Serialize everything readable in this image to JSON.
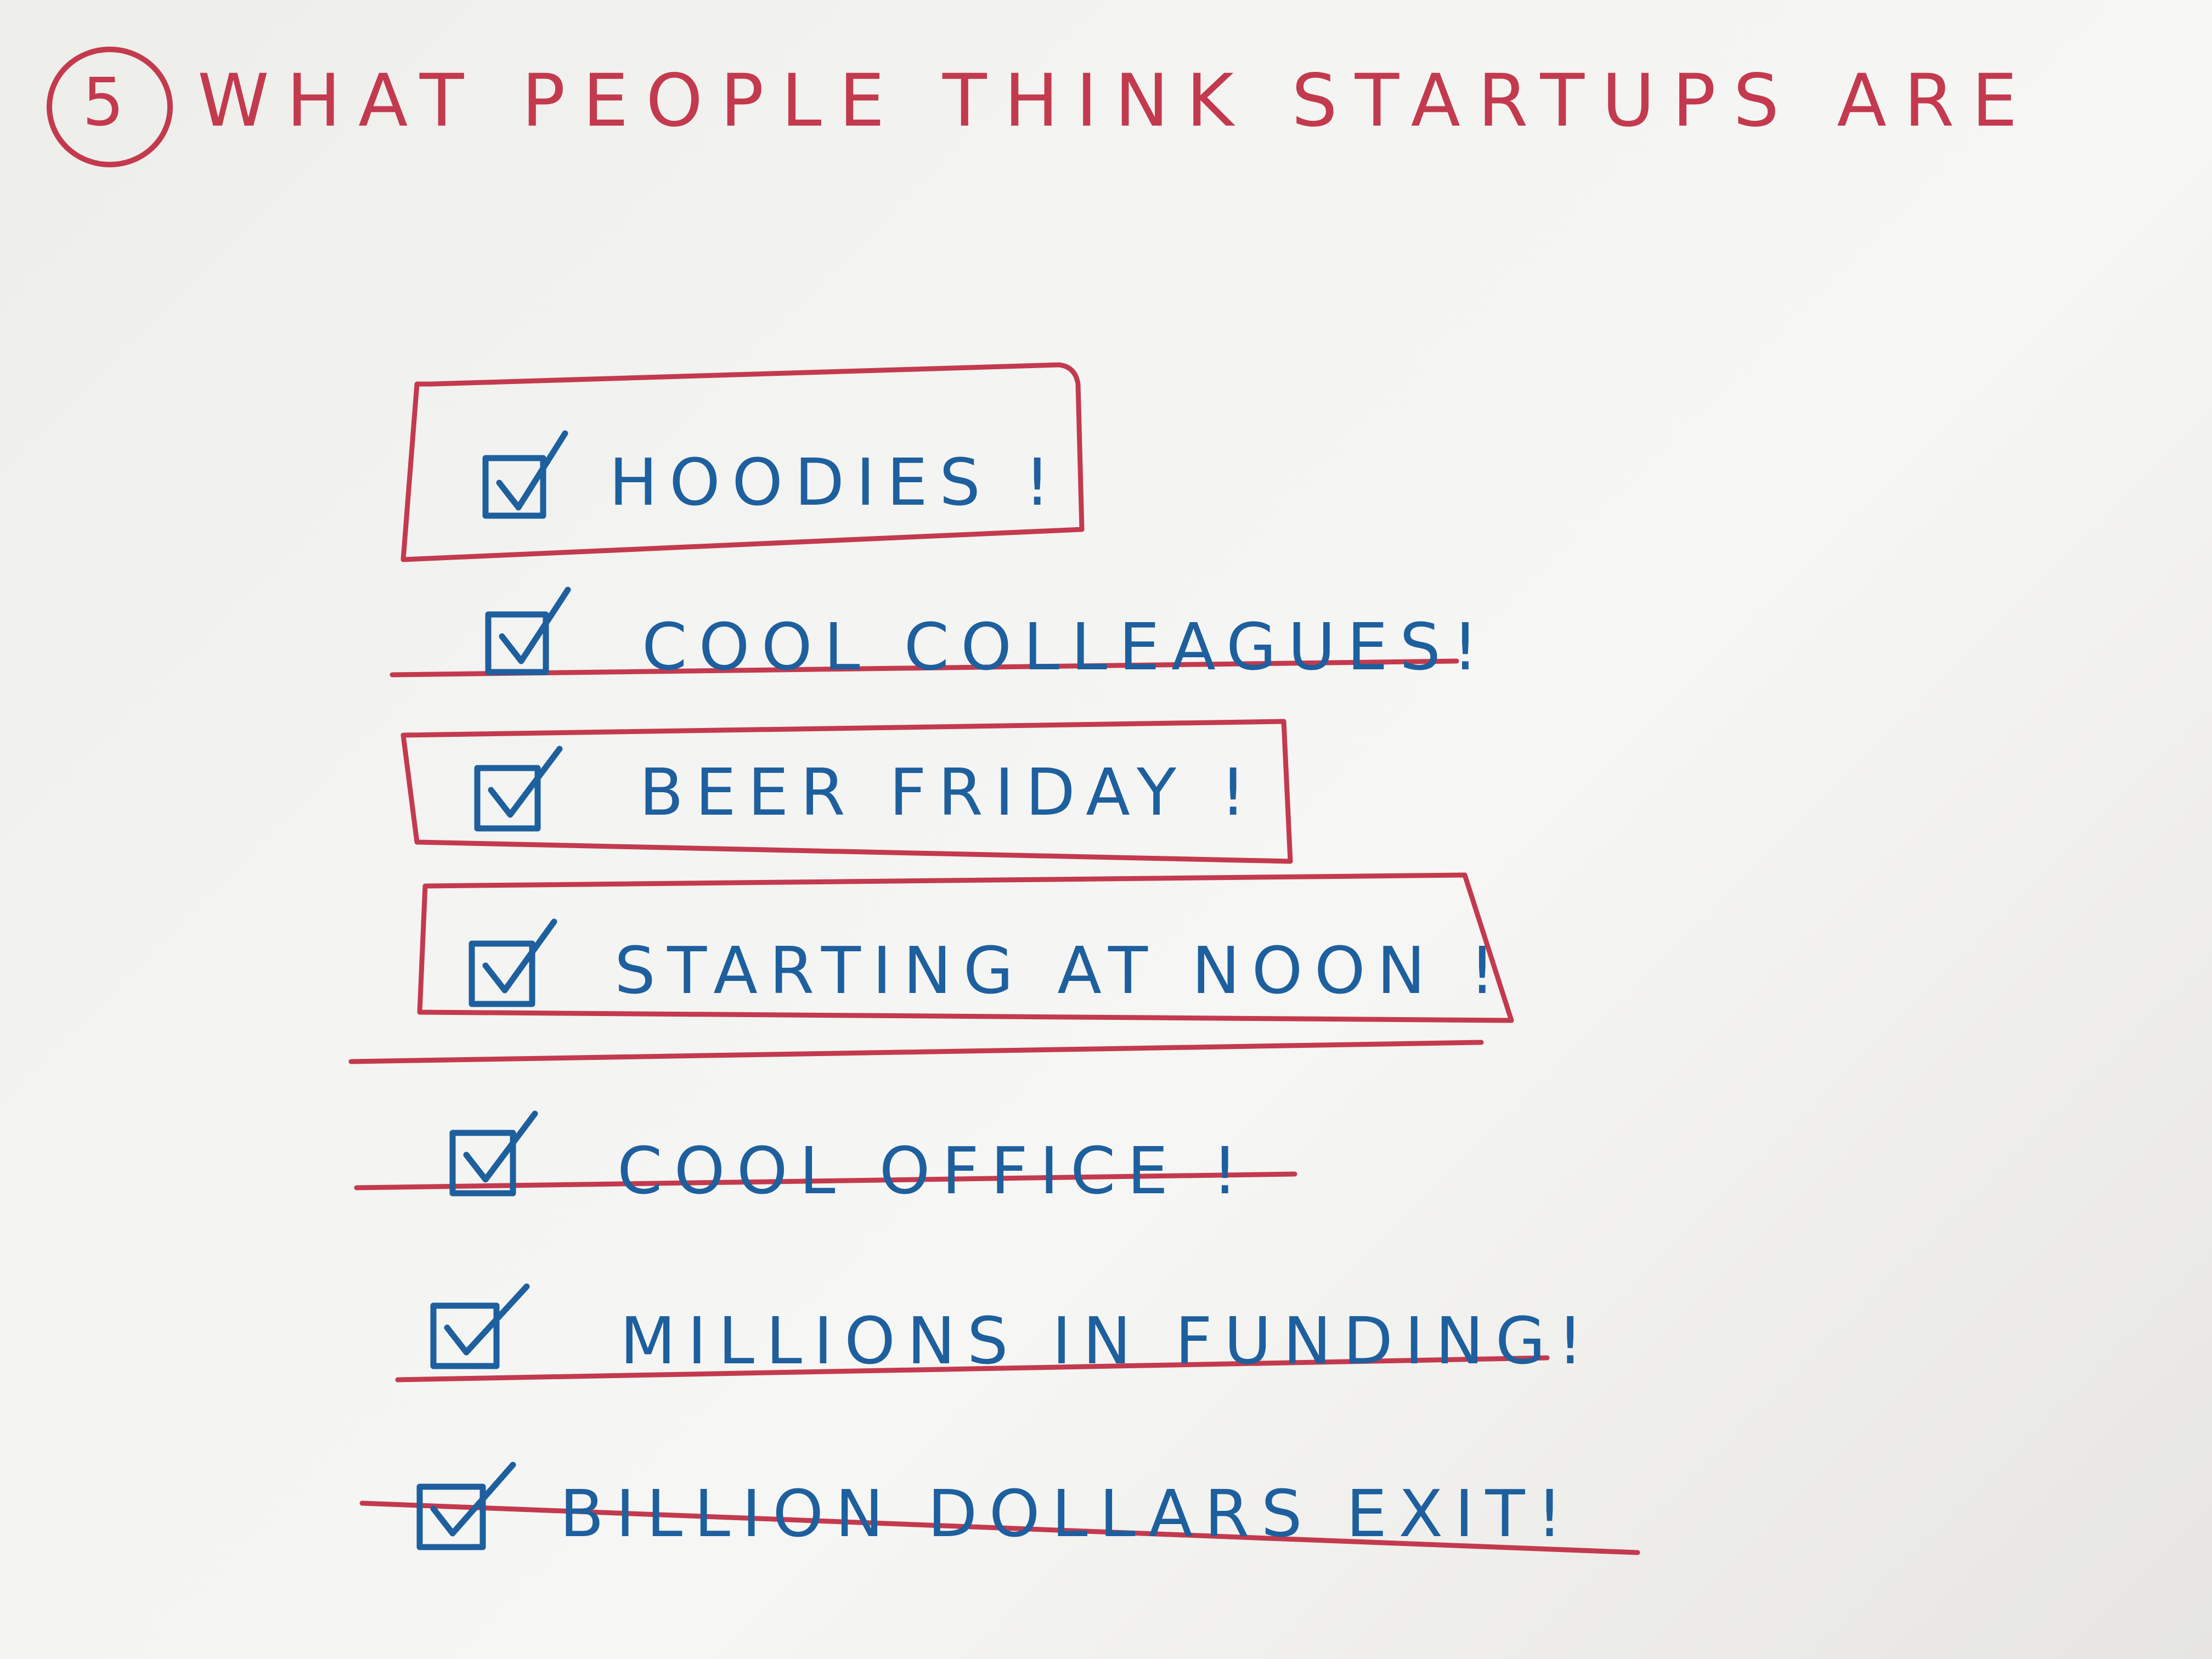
{
  "page": {
    "number": "5",
    "title": "WHAT PEOPLE THINK STARTUPS ARE"
  },
  "items": [
    {
      "label": "HOODIES !",
      "checked": true,
      "mark": "boxed"
    },
    {
      "label": "COOL COLLEAGUES!",
      "checked": true,
      "mark": "struck"
    },
    {
      "label": "BEER FRIDAY !",
      "checked": true,
      "mark": "boxed"
    },
    {
      "label": "STARTING AT NOON !",
      "checked": true,
      "mark": "boxed"
    },
    {
      "label": "COOL OFFICE !",
      "checked": true,
      "mark": "struck"
    },
    {
      "label": "MILLIONS IN FUNDING!",
      "checked": true,
      "mark": "struck"
    },
    {
      "label": "BILLION DOLLARS EXIT!",
      "checked": true,
      "mark": "struck"
    }
  ],
  "colors": {
    "red_ink": "#c33a4e",
    "blue_ink": "#1e5f9e",
    "paper": "#f3f3f1"
  }
}
